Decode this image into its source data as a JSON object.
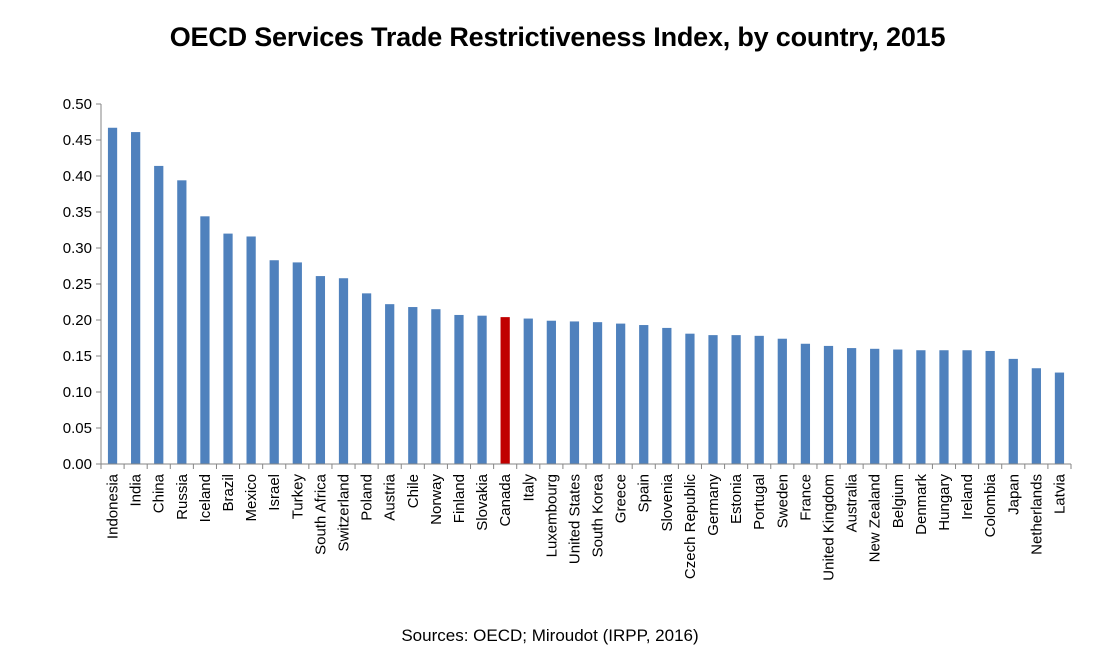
{
  "chart_data": {
    "type": "bar",
    "title": "OECD Services Trade Restrictiveness Index, by country, 2015",
    "source": "Sources: OECD; Miroudot (IRPP, 2016)",
    "xlabel": "",
    "ylabel": "",
    "ylim": [
      0,
      0.5
    ],
    "yticks": [
      "0.00",
      "0.05",
      "0.10",
      "0.15",
      "0.20",
      "0.25",
      "0.30",
      "0.35",
      "0.40",
      "0.45",
      "0.50"
    ],
    "grid": false,
    "colors": {
      "default": "#4f81bd",
      "highlight": "#c00000"
    },
    "highlight": "Canada",
    "categories": [
      "Indonesia",
      "India",
      "China",
      "Russia",
      "Iceland",
      "Brazil",
      "Mexico",
      "Israel",
      "Turkey",
      "South Africa",
      "Switzerland",
      "Poland",
      "Austria",
      "Chile",
      "Norway",
      "Finland",
      "Slovakia",
      "Canada",
      "Italy",
      "Luxembourg",
      "United States",
      "South Korea",
      "Greece",
      "Spain",
      "Slovenia",
      "Czech Republic",
      "Germany",
      "Estonia",
      "Portugal",
      "Sweden",
      "France",
      "United Kingdom",
      "Australia",
      "New Zealand",
      "Belgium",
      "Denmark",
      "Hungary",
      "Ireland",
      "Colombia",
      "Japan",
      "Netherlands",
      "Latvia"
    ],
    "values": [
      0.467,
      0.461,
      0.414,
      0.394,
      0.344,
      0.32,
      0.316,
      0.283,
      0.28,
      0.261,
      0.258,
      0.237,
      0.222,
      0.218,
      0.215,
      0.207,
      0.206,
      0.204,
      0.202,
      0.199,
      0.198,
      0.197,
      0.195,
      0.193,
      0.189,
      0.181,
      0.179,
      0.179,
      0.178,
      0.174,
      0.167,
      0.164,
      0.161,
      0.16,
      0.159,
      0.158,
      0.158,
      0.158,
      0.157,
      0.146,
      0.133,
      0.127
    ]
  }
}
